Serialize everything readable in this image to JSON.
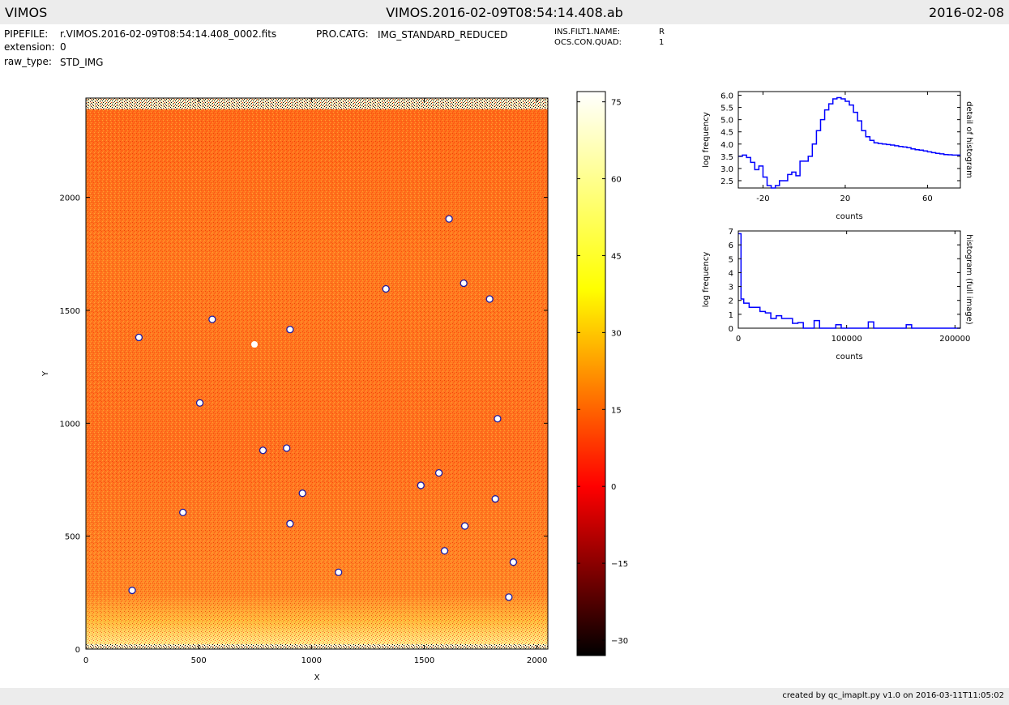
{
  "header": {
    "app": "VIMOS",
    "file": "VIMOS.2016-02-09T08:54:14.408.ab",
    "date": "2016-02-08"
  },
  "meta": {
    "pipefile_label": "PIPEFILE:",
    "pipefile_value": "r.VIMOS.2016-02-09T08:54:14.408_0002.fits",
    "extension_label": "extension:",
    "extension_value": "0",
    "raw_type_label": "raw_type:",
    "raw_type_value": "STD_IMG",
    "pro_catg_label": "PRO.CATG:",
    "pro_catg_value": "IMG_STANDARD_REDUCED",
    "filter_label": "INS.FILT1.NAME:",
    "filter_value": "R",
    "quad_label": "OCS.CON.QUAD:",
    "quad_value": "1"
  },
  "footer": "created by qc_imaplt.py v1.0 on 2016-03-11T11:05:02",
  "chart_data": [
    {
      "type": "heatmap",
      "xlabel": "X",
      "ylabel": "Y",
      "xlim": [
        0,
        2048
      ],
      "ylim": [
        0,
        2440
      ],
      "xticks": [
        0,
        500,
        1000,
        1500,
        2000
      ],
      "yticks": [
        0,
        500,
        1000,
        1500,
        2000
      ],
      "colormap": "hot",
      "detected_sources": [
        {
          "x": 1610,
          "y": 1905
        },
        {
          "x": 1675,
          "y": 1620
        },
        {
          "x": 1790,
          "y": 1550
        },
        {
          "x": 1330,
          "y": 1595
        },
        {
          "x": 560,
          "y": 1460
        },
        {
          "x": 905,
          "y": 1415
        },
        {
          "x": 235,
          "y": 1380
        },
        {
          "x": 505,
          "y": 1090
        },
        {
          "x": 1825,
          "y": 1020
        },
        {
          "x": 785,
          "y": 880
        },
        {
          "x": 890,
          "y": 890
        },
        {
          "x": 1565,
          "y": 780
        },
        {
          "x": 1485,
          "y": 725
        },
        {
          "x": 960,
          "y": 690
        },
        {
          "x": 1815,
          "y": 665
        },
        {
          "x": 430,
          "y": 605
        },
        {
          "x": 905,
          "y": 555
        },
        {
          "x": 1680,
          "y": 545
        },
        {
          "x": 1590,
          "y": 435
        },
        {
          "x": 1895,
          "y": 385
        },
        {
          "x": 1120,
          "y": 340
        },
        {
          "x": 205,
          "y": 260
        },
        {
          "x": 1875,
          "y": 230
        }
      ]
    },
    {
      "type": "colorbar",
      "ticks": [
        75,
        60,
        45,
        30,
        15,
        0,
        -15,
        -30
      ],
      "tick_labels": [
        "75",
        "60",
        "45",
        "30",
        "15",
        "0",
        "−15",
        "−30"
      ],
      "range": [
        -33,
        77
      ]
    },
    {
      "type": "line",
      "title": "detail of histogram",
      "xlabel": "counts",
      "ylabel": "log frequency",
      "xlim": [
        -32,
        76
      ],
      "ylim": [
        2.2,
        6.15
      ],
      "xticks": [
        "-20",
        "20",
        "60"
      ],
      "yticks": [
        "2.5",
        "3.0",
        "3.5",
        "4.0",
        "4.5",
        "5.0",
        "5.5",
        "6.0"
      ],
      "color": "#0000ff",
      "x": [
        -32,
        -30,
        -28,
        -26,
        -24,
        -22,
        -20,
        -18,
        -16,
        -14,
        -12,
        -10,
        -8,
        -6,
        -4,
        -2,
        0,
        2,
        4,
        6,
        8,
        10,
        12,
        14,
        16,
        18,
        20,
        22,
        24,
        26,
        28,
        30,
        32,
        34,
        36,
        38,
        40,
        42,
        44,
        46,
        48,
        50,
        52,
        54,
        56,
        58,
        60,
        62,
        64,
        66,
        68,
        70,
        72,
        74,
        76
      ],
      "y": [
        3.5,
        3.55,
        3.45,
        3.25,
        2.95,
        3.1,
        2.65,
        2.3,
        2.2,
        2.3,
        2.5,
        2.5,
        2.75,
        2.85,
        2.7,
        3.3,
        3.3,
        3.5,
        4.0,
        4.55,
        5.0,
        5.4,
        5.65,
        5.85,
        5.9,
        5.85,
        5.75,
        5.6,
        5.3,
        4.95,
        4.55,
        4.3,
        4.15,
        4.05,
        4.02,
        4.0,
        3.98,
        3.96,
        3.93,
        3.9,
        3.88,
        3.85,
        3.8,
        3.77,
        3.75,
        3.72,
        3.68,
        3.65,
        3.62,
        3.6,
        3.57,
        3.56,
        3.55,
        3.55,
        3.55
      ]
    },
    {
      "type": "line",
      "title": "histogram (full image)",
      "xlabel": "counts",
      "ylabel": "log frequency",
      "xlim": [
        0,
        205000
      ],
      "ylim": [
        0,
        7
      ],
      "xticks": [
        "0",
        "100000",
        "200000"
      ],
      "yticks": [
        "0",
        "1",
        "2",
        "3",
        "4",
        "5",
        "6",
        "7"
      ],
      "color": "#0000ff",
      "x": [
        0,
        2500,
        5000,
        10000,
        15000,
        20000,
        25000,
        30000,
        35000,
        40000,
        45000,
        50000,
        55000,
        60000,
        65000,
        70000,
        75000,
        80000,
        85000,
        90000,
        95000,
        120000,
        125000,
        155000,
        160000,
        165000,
        205000
      ],
      "y": [
        6.8,
        2.1,
        1.8,
        1.5,
        1.5,
        1.2,
        1.1,
        0.7,
        0.9,
        0.7,
        0.7,
        0.35,
        0.4,
        0.0,
        0.0,
        0.55,
        0.0,
        0.0,
        0.0,
        0.25,
        0.0,
        0.45,
        0.0,
        0.25,
        0.0,
        0.0,
        0.0
      ]
    }
  ]
}
